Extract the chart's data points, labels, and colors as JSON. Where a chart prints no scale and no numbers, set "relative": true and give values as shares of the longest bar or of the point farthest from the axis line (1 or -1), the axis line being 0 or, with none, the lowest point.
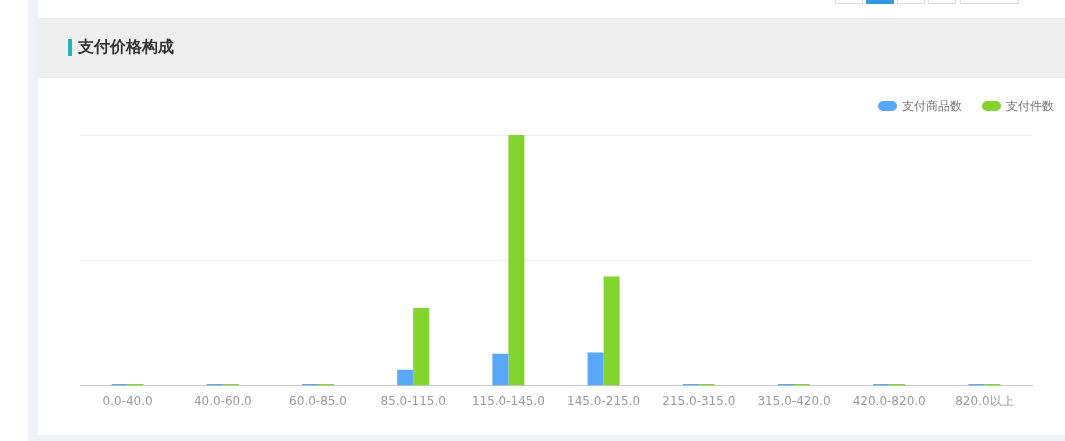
{
  "chart_data": {
    "type": "bar",
    "title": "支付价格构成",
    "categories": [
      "0.0-40.0",
      "40.0-60.0",
      "60.0-85.0",
      "85.0-115.0",
      "115.0-145.0",
      "145.0-215.0",
      "215.0-315.0",
      "315.0-420.0",
      "420.0-820.0",
      "820.0以上"
    ],
    "series": [
      {
        "name": "支付商品数",
        "color": "#58a7f8",
        "values": [
          0.006,
          0.006,
          0.006,
          0.063,
          0.127,
          0.132,
          0.006,
          0.006,
          0.006,
          0.006
        ]
      },
      {
        "name": "支付件数",
        "color": "#83d42e",
        "values": [
          0.006,
          0.006,
          0.006,
          0.31,
          1,
          0.435,
          0.006,
          0.006,
          0.006,
          0.006
        ]
      }
    ],
    "relative": true,
    "ref_lines": [
      {
        "axis": "y",
        "value": 0.5,
        "color": "#eeeeee"
      },
      {
        "axis": "y",
        "value": 1,
        "color": "#eeeeee"
      }
    ],
    "legend": "top right",
    "tick_labels": "x"
  }
}
